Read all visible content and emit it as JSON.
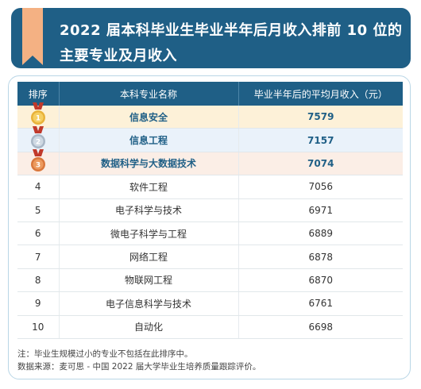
{
  "header": {
    "title_line1": "2022 届本科毕业生毕业半年后月收入排前 10 位的",
    "title_line2": "主要专业及月收入",
    "accent_color": "#1f5f86",
    "ribbon_color": "#f4b183"
  },
  "table": {
    "columns": [
      "排序",
      "本科专业名称",
      "毕业半年后的平均月收入（元）"
    ],
    "rows": [
      {
        "rank": "1",
        "medal": "gold-medal-icon",
        "major": "信息安全",
        "income": "7579"
      },
      {
        "rank": "2",
        "medal": "silver-medal-icon",
        "major": "信息工程",
        "income": "7157"
      },
      {
        "rank": "3",
        "medal": "bronze-medal-icon",
        "major": "数据科学与大数据技术",
        "income": "7074"
      },
      {
        "rank": "4",
        "major": "软件工程",
        "income": "7056"
      },
      {
        "rank": "5",
        "major": "电子科学与技术",
        "income": "6971"
      },
      {
        "rank": "6",
        "major": "微电子科学与工程",
        "income": "6889"
      },
      {
        "rank": "7",
        "major": "网络工程",
        "income": "6878"
      },
      {
        "rank": "8",
        "major": "物联网工程",
        "income": "6870"
      },
      {
        "rank": "9",
        "major": "电子信息科学与技术",
        "income": "6761"
      },
      {
        "rank": "10",
        "major": "自动化",
        "income": "6698"
      }
    ]
  },
  "notes": {
    "note1": "注：毕业生规模过小的专业不包括在此排序中。",
    "note2": "数据来源：麦可思 - 中国 2022 届大学毕业生培养质量跟踪评价。"
  }
}
